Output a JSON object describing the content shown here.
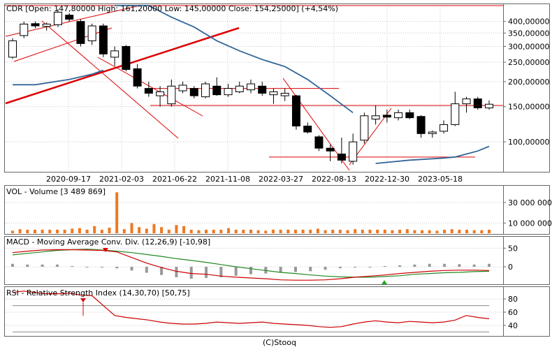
{
  "footer": "(C)Stooq",
  "colors": {
    "up_fill": "#ffffff",
    "down_fill": "#000000",
    "candle_stroke": "#000000",
    "trend_line": "#dd0000",
    "ma_line": "#336699",
    "volume_bar": "#f07820",
    "macd_line": "#cc0000",
    "signal_line": "#228822",
    "histogram": "#999999",
    "rsi_line": "#cc0000",
    "grid": "#c8c8c8"
  },
  "chart_data": [
    {
      "type": "candlestick",
      "title": "CDR [Open: 147,80000  High: 161,20000  Low: 145,00000  Close: 154,25000]  (+4,54%)",
      "x_tick_labels": [
        "2020-09-17",
        "2021-02-03",
        "2021-06-22",
        "2021-11-08",
        "2022-03-27",
        "2022-08-13",
        "2022-12-30",
        "2023-05-18"
      ],
      "y_tick_labels": [
        "400,00000",
        "350,00000",
        "300,00000",
        "250,00000",
        "200,00000",
        "150,00000",
        "100,00000"
      ],
      "y_scale": "log",
      "ylim": [
        72,
        480
      ],
      "candles": [
        {
          "o": 265,
          "h": 330,
          "l": 260,
          "c": 320
        },
        {
          "o": 340,
          "h": 400,
          "l": 330,
          "c": 388
        },
        {
          "o": 390,
          "h": 400,
          "l": 370,
          "c": 380
        },
        {
          "o": 378,
          "h": 395,
          "l": 360,
          "c": 388
        },
        {
          "o": 385,
          "h": 460,
          "l": 375,
          "c": 445
        },
        {
          "o": 430,
          "h": 440,
          "l": 400,
          "c": 410
        },
        {
          "o": 400,
          "h": 410,
          "l": 300,
          "c": 310
        },
        {
          "o": 320,
          "h": 390,
          "l": 305,
          "c": 380
        },
        {
          "o": 380,
          "h": 390,
          "l": 265,
          "c": 275
        },
        {
          "o": 265,
          "h": 300,
          "l": 240,
          "c": 285
        },
        {
          "o": 300,
          "h": 305,
          "l": 225,
          "c": 230
        },
        {
          "o": 232,
          "h": 245,
          "l": 185,
          "c": 190
        },
        {
          "o": 185,
          "h": 200,
          "l": 168,
          "c": 175
        },
        {
          "o": 170,
          "h": 190,
          "l": 150,
          "c": 178
        },
        {
          "o": 155,
          "h": 205,
          "l": 150,
          "c": 190
        },
        {
          "o": 180,
          "h": 200,
          "l": 175,
          "c": 192
        },
        {
          "o": 185,
          "h": 190,
          "l": 165,
          "c": 170
        },
        {
          "o": 168,
          "h": 200,
          "l": 165,
          "c": 195
        },
        {
          "o": 190,
          "h": 210,
          "l": 170,
          "c": 172
        },
        {
          "o": 172,
          "h": 195,
          "l": 168,
          "c": 185
        },
        {
          "o": 178,
          "h": 200,
          "l": 175,
          "c": 190
        },
        {
          "o": 182,
          "h": 205,
          "l": 175,
          "c": 195
        },
        {
          "o": 190,
          "h": 200,
          "l": 170,
          "c": 175
        },
        {
          "o": 172,
          "h": 185,
          "l": 155,
          "c": 178
        },
        {
          "o": 170,
          "h": 185,
          "l": 160,
          "c": 175
        },
        {
          "o": 170,
          "h": 172,
          "l": 115,
          "c": 120
        },
        {
          "o": 120,
          "h": 125,
          "l": 110,
          "c": 112
        },
        {
          "o": 106,
          "h": 108,
          "l": 90,
          "c": 93
        },
        {
          "o": 93,
          "h": 97,
          "l": 80,
          "c": 90
        },
        {
          "o": 87,
          "h": 105,
          "l": 78,
          "c": 81
        },
        {
          "o": 80,
          "h": 110,
          "l": 77,
          "c": 100
        },
        {
          "o": 102,
          "h": 140,
          "l": 98,
          "c": 135
        },
        {
          "o": 130,
          "h": 152,
          "l": 122,
          "c": 135
        },
        {
          "o": 136,
          "h": 145,
          "l": 125,
          "c": 133
        },
        {
          "o": 132,
          "h": 145,
          "l": 128,
          "c": 140
        },
        {
          "o": 140,
          "h": 145,
          "l": 130,
          "c": 132
        },
        {
          "o": 134,
          "h": 136,
          "l": 105,
          "c": 110
        },
        {
          "o": 110,
          "h": 114,
          "l": 105,
          "c": 112
        },
        {
          "o": 113,
          "h": 128,
          "l": 110,
          "c": 122
        },
        {
          "o": 122,
          "h": 178,
          "l": 120,
          "c": 155
        },
        {
          "o": 155,
          "h": 168,
          "l": 140,
          "c": 164
        },
        {
          "o": 164,
          "h": 168,
          "l": 145,
          "c": 148
        },
        {
          "o": 147.8,
          "h": 161.2,
          "l": 145,
          "c": 154.25
        }
      ],
      "moving_average": [
        {
          "i": 0,
          "v": 193
        },
        {
          "i": 2,
          "v": 193
        },
        {
          "i": 5,
          "v": 205
        },
        {
          "i": 7,
          "v": 218
        },
        {
          "i": 8,
          "v": 228
        },
        {
          "i": 9,
          "v": 560
        },
        {
          "i": 10,
          "v": 540
        },
        {
          "i": 12,
          "v": 500
        },
        {
          "i": 14,
          "v": 420
        },
        {
          "i": 16,
          "v": 375
        },
        {
          "i": 18,
          "v": 320
        },
        {
          "i": 20,
          "v": 285
        },
        {
          "i": 22,
          "v": 258
        },
        {
          "i": 24,
          "v": 238
        },
        {
          "i": 26,
          "v": 205
        },
        {
          "i": 28,
          "v": 170
        },
        {
          "i": 30,
          "v": 140
        },
        {
          "i": 32,
          "v": 78
        },
        {
          "i": 35,
          "v": 81
        },
        {
          "i": 38,
          "v": 83
        },
        {
          "i": 39,
          "v": 84
        },
        {
          "i": 41,
          "v": 90
        },
        {
          "i": 42,
          "v": 95
        }
      ],
      "horizontal_levels": [
        490,
        185,
        152,
        84
      ]
    },
    {
      "type": "bar",
      "title": "VOL - Volume [3 489 869]",
      "y_tick_labels": [
        "30 000 000",
        "10 000 000"
      ],
      "ylim": [
        0,
        45000000
      ],
      "values": [
        2500000,
        4000000,
        3500000,
        3500000,
        3500000,
        3500000,
        3500000,
        3500000,
        4500000,
        5000000,
        3500000,
        7000000,
        3500000,
        5500000,
        40000000,
        4000000,
        10000000,
        6000000,
        4500000,
        9000000,
        6000000,
        3500000,
        8000000,
        7000000,
        3500000,
        3000000,
        3500000,
        3500000,
        3500000,
        5000000,
        3500000,
        3500000,
        3500000,
        3000000,
        2500000,
        3500000,
        3500000,
        3500000,
        3500000,
        3500000,
        3500000,
        4500000,
        3000000,
        3500000,
        3500000,
        3000000,
        4000000,
        3500000,
        3500000,
        3500000,
        3500000,
        3000000,
        3500000,
        4000000,
        3000000,
        3000000,
        3000000,
        2500000,
        3500000,
        4000000,
        3500000,
        3500000,
        3000000,
        3000000,
        3500000
      ]
    },
    {
      "type": "line",
      "title": "MACD - Moving Average Conv. Div. (12,26,9) [-10,98]",
      "y_tick_labels": [
        "50",
        "0"
      ],
      "ylim": [
        -45,
        75
      ],
      "macd": [
        38,
        42,
        45,
        46,
        46,
        45,
        44,
        40,
        25,
        10,
        -2,
        -12,
        -18,
        -20,
        -25,
        -28,
        -30,
        -32,
        -35,
        -36,
        -36,
        -35,
        -32,
        -28,
        -25,
        -22,
        -18,
        -15,
        -12,
        -10,
        -9,
        -9,
        -10
      ],
      "signal": [
        32,
        36,
        40,
        44,
        46,
        47,
        45,
        42,
        38,
        33,
        28,
        22,
        17,
        12,
        6,
        0,
        -5,
        -10,
        -15,
        -18,
        -22,
        -25,
        -27,
        -28,
        -28,
        -26,
        -24,
        -20,
        -18,
        -16,
        -15,
        -13,
        -12
      ],
      "histogram": [
        8,
        6,
        6,
        6,
        2,
        0,
        -2,
        -4,
        -10,
        -16,
        -22,
        -28,
        -32,
        -30,
        -28,
        -24,
        -20,
        -18,
        -16,
        -14,
        -12,
        -8,
        -4,
        -2,
        0,
        2,
        4,
        6,
        8,
        8,
        7,
        6,
        8
      ]
    },
    {
      "type": "line",
      "title": "RSI - Relative Strength Index (14,30,70) [50,75]",
      "y_tick_labels": [
        "80",
        "60",
        "40"
      ],
      "ylim": [
        25,
        95
      ],
      "values": [
        90,
        92,
        90,
        88,
        88,
        89,
        86,
        85,
        70,
        55,
        52,
        50,
        48,
        45,
        43,
        42,
        42,
        43,
        45,
        44,
        43,
        44,
        45,
        43,
        42,
        41,
        40,
        38,
        37,
        38,
        42,
        45,
        47,
        45,
        44,
        46,
        45,
        44,
        45,
        48,
        55,
        52,
        50
      ]
    }
  ]
}
